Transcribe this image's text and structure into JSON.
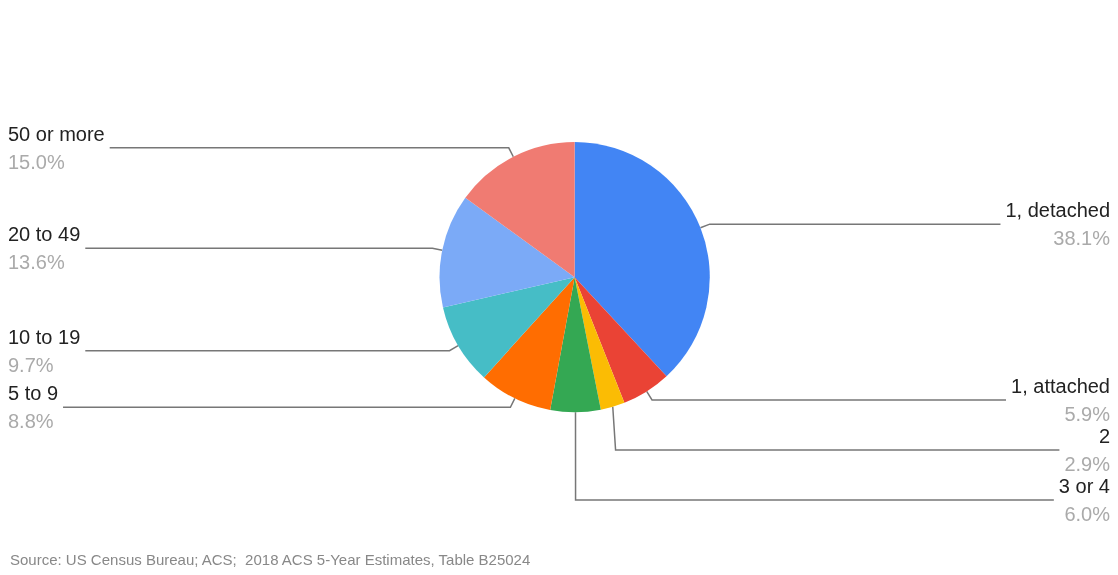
{
  "chart_data": {
    "type": "pie",
    "categories": [
      "1, detached",
      "1, attached",
      "2",
      "3 or 4",
      "5 to 9",
      "10 to 19",
      "20 to 49",
      "50 or more"
    ],
    "values": [
      38.1,
      5.9,
      2.9,
      6.0,
      8.8,
      9.7,
      13.6,
      15.0
    ],
    "value_labels": [
      "38.1%",
      "5.9%",
      "2.9%",
      "6.0%",
      "8.8%",
      "9.7%",
      "13.6%",
      "15.0%"
    ],
    "colors": [
      "#4285f4",
      "#ea4335",
      "#fbbc04",
      "#34a853",
      "#ff6d01",
      "#46bdc6",
      "#7baaf7",
      "#f07b72"
    ],
    "annotations": [
      "Source: US Census Bureau; ACS;  2018 ACS 5-Year Estimates, Table B25024"
    ],
    "legend": false
  }
}
